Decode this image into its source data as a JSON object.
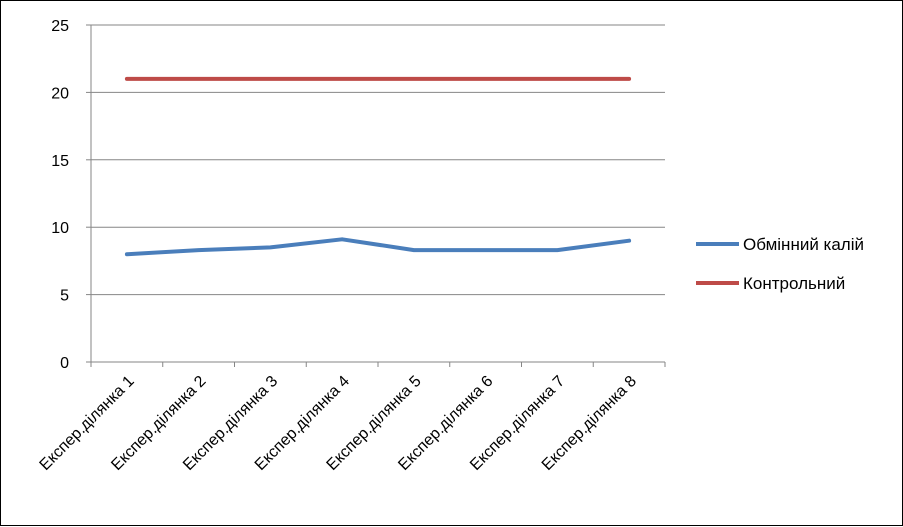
{
  "chart_data": {
    "type": "line",
    "categories": [
      "Експер.ділянка 1",
      "Експер.ділянка 2",
      "Експер.ділянка 3",
      "Експер.ділянка 4",
      "Експер.ділянка 5",
      "Експер.ділянка 6",
      "Експер.ділянка 7",
      "Експер.ділянка 8"
    ],
    "series": [
      {
        "name": "Обмінний калій",
        "values": [
          8.0,
          8.3,
          8.5,
          9.1,
          8.3,
          8.3,
          8.3,
          9.0
        ],
        "color": "#4a7ebb"
      },
      {
        "name": "Контрольний",
        "values": [
          21,
          21,
          21,
          21,
          21,
          21,
          21,
          21
        ],
        "color": "#be4b48"
      }
    ],
    "ylim": [
      0,
      25
    ],
    "yticks": [
      0,
      5,
      10,
      15,
      20,
      25
    ],
    "grid": true,
    "legend_position": "right"
  }
}
